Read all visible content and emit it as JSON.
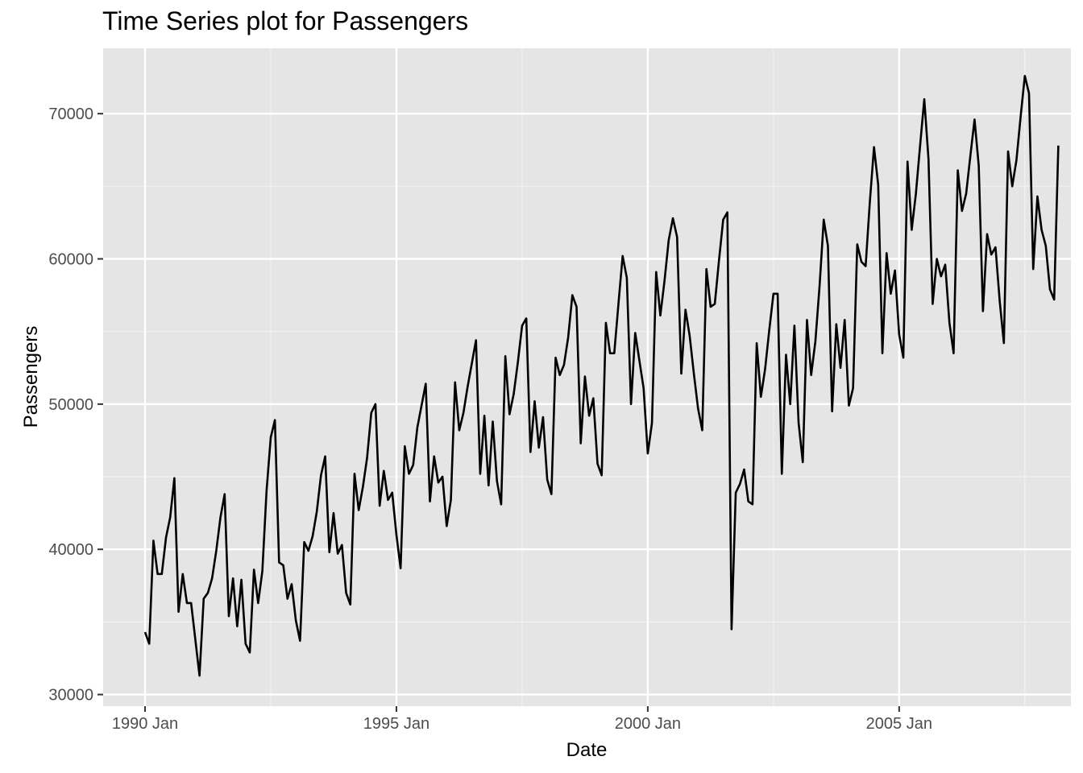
{
  "chart_data": {
    "type": "line",
    "title": "Time Series plot for Passengers",
    "xlabel": "Date",
    "ylabel": "Passengers",
    "x_unit": "month",
    "x_start": "1990 Jan",
    "x_range": [
      "1989 Mar",
      "2008 Jun"
    ],
    "ylim": [
      29200,
      74500
    ],
    "grid": true,
    "x_ticks": [
      {
        "label": "1990 Jan",
        "value": "1990 Jan"
      },
      {
        "label": "1995 Jan",
        "value": "1995 Jan"
      },
      {
        "label": "2000 Jan",
        "value": "2000 Jan"
      },
      {
        "label": "2005 Jan",
        "value": "2005 Jan"
      }
    ],
    "x_minor_ticks": [
      "1992 Jul",
      "1997 Jul",
      "2002 Jul",
      "2007 Jul"
    ],
    "y_ticks": [
      30000,
      40000,
      50000,
      60000,
      70000
    ],
    "y_minor_ticks": [
      35000,
      45000,
      55000,
      65000
    ],
    "series": [
      {
        "color": "#000000",
        "values": [
          34300,
          33500,
          40600,
          38300,
          38300,
          40800,
          42200,
          44900,
          35700,
          38300,
          36300,
          36300,
          33800,
          31300,
          36600,
          37000,
          38000,
          39900,
          42200,
          43800,
          35400,
          38000,
          34700,
          37900,
          33500,
          32900,
          38600,
          36300,
          38500,
          44000,
          47700,
          48900,
          39100,
          38900,
          36600,
          37600,
          35100,
          33700,
          40500,
          39900,
          40900,
          42600,
          45100,
          46400,
          39800,
          42500,
          39700,
          40300,
          37000,
          36200,
          45200,
          42700,
          44300,
          46300,
          49400,
          50000,
          43000,
          45400,
          43400,
          43900,
          41000,
          38700,
          47100,
          45200,
          45800,
          48400,
          49900,
          51400,
          43300,
          46400,
          44600,
          45000,
          41600,
          43400,
          51500,
          48200,
          49400,
          51200,
          52800,
          54400,
          45200,
          49200,
          44400,
          48800,
          44700,
          43100,
          53300,
          49300,
          50700,
          52900,
          55400,
          55900,
          46700,
          50200,
          47000,
          49100,
          44800,
          43800,
          53200,
          52000,
          52700,
          54600,
          57500,
          56700,
          47300,
          51900,
          49200,
          50400,
          45900,
          45100,
          55600,
          53500,
          53500,
          56900,
          60200,
          58700,
          50000,
          54900,
          53000,
          51100,
          46600,
          48700,
          59100,
          56100,
          58500,
          61300,
          62800,
          61500,
          52100,
          56500,
          54700,
          52100,
          49700,
          48200,
          59300,
          56700,
          56900,
          59900,
          62700,
          63200,
          34500,
          43900,
          44500,
          45500,
          43300,
          43100,
          54200,
          50500,
          52400,
          55100,
          57600,
          57600,
          45200,
          53400,
          50000,
          55400,
          48700,
          46000,
          55800,
          52000,
          54300,
          58100,
          62700,
          60900,
          49500,
          55500,
          52500,
          55800,
          49900,
          51100,
          61000,
          59800,
          59500,
          63900,
          67700,
          65100,
          53500,
          60400,
          57600,
          59200,
          54800,
          53200,
          66700,
          62000,
          64500,
          67800,
          71000,
          66900,
          56900,
          60000,
          58800,
          59600,
          55600,
          53500,
          66100,
          63300,
          64500,
          67100,
          69600,
          66400,
          56400,
          61700,
          60300,
          60800,
          57100,
          54200,
          67400,
          65000,
          66800,
          69800,
          72600,
          71400,
          59300,
          64300,
          62000,
          60900,
          57900,
          57200,
          67800
        ]
      }
    ]
  }
}
